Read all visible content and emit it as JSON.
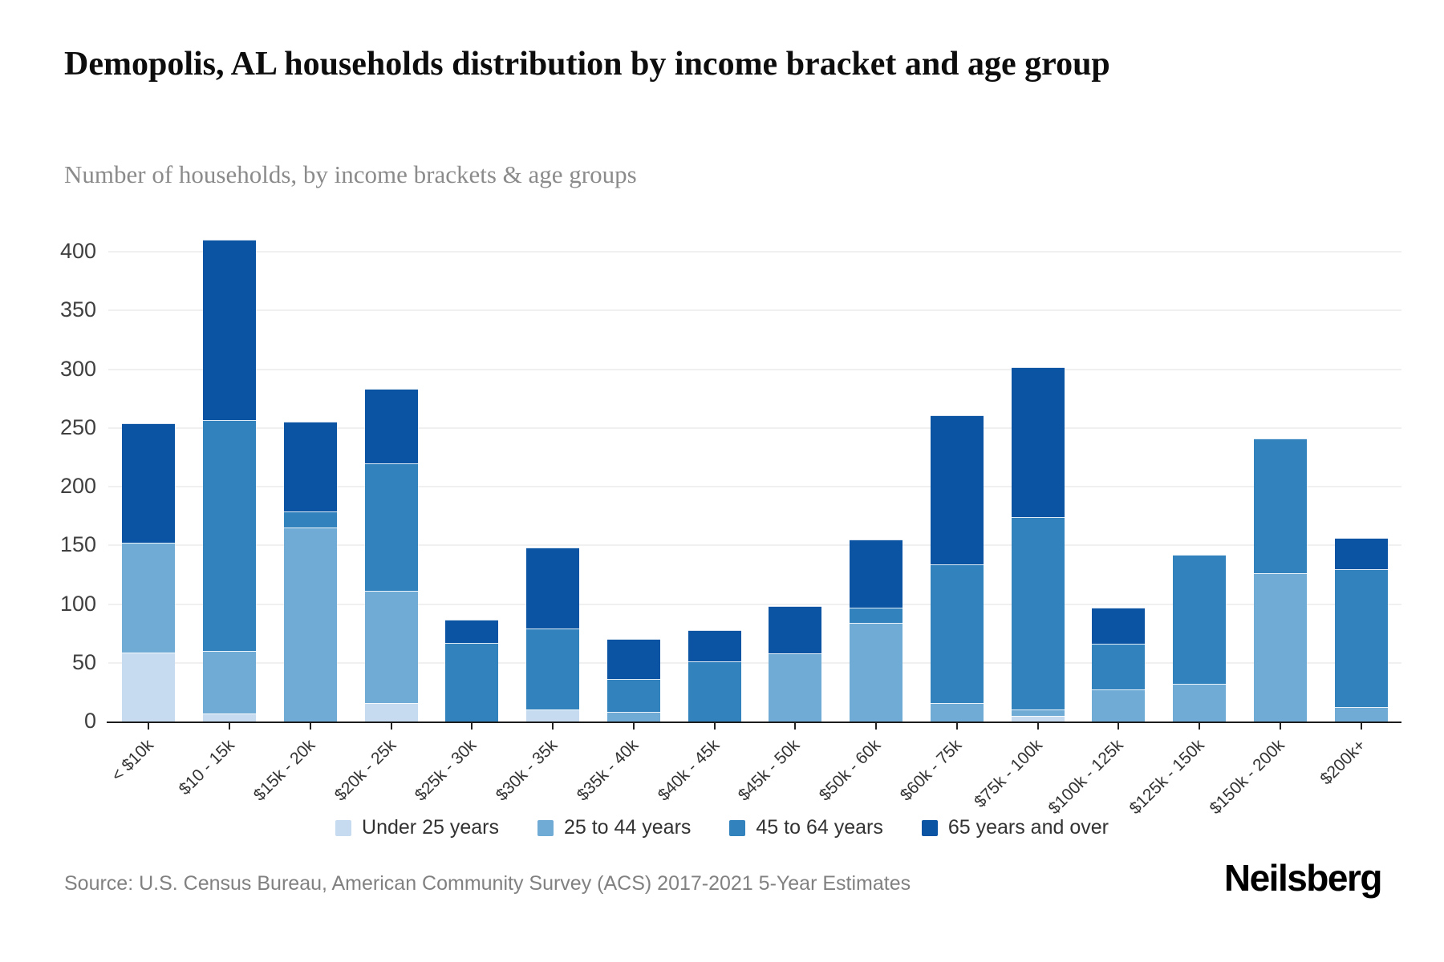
{
  "header": {
    "title": "Demopolis, AL households distribution by income bracket and age group",
    "subtitle": "Number of households, by income brackets & age groups"
  },
  "footer": {
    "source": "Source: U.S. Census Bureau, American Community Survey (ACS) 2017-2021 5-Year Estimates",
    "logo": "Neilsberg"
  },
  "chart_data": {
    "type": "bar",
    "stacked": true,
    "title": "Demopolis, AL households distribution by income bracket and age group",
    "subtitle": "Number of households, by income brackets & age groups",
    "xlabel": "",
    "ylabel": "",
    "ylim": [
      0,
      400
    ],
    "ytick_step": 50,
    "yticks": [
      0,
      50,
      100,
      150,
      200,
      250,
      300,
      350,
      400
    ],
    "grid": true,
    "legend_position": "bottom",
    "categories": [
      "< $10k",
      "$10 - 15k",
      "$15k - 20k",
      "$20k - 25k",
      "$25k - 30k",
      "$30k - 35k",
      "$35k - 40k",
      "$40k - 45k",
      "$45k - 50k",
      "$50k - 60k",
      "$60k - 75k",
      "$75k - 100k",
      "$100k - 125k",
      "$125k - 150k",
      "$150k - 200k",
      "$200k+"
    ],
    "series": [
      {
        "name": "Under 25 years",
        "color": "#c6dbef",
        "values": [
          59,
          7,
          0,
          16,
          0,
          10,
          0,
          0,
          0,
          0,
          0,
          5,
          0,
          0,
          0,
          0
        ]
      },
      {
        "name": "25 to 44 years",
        "color": "#6fabd5",
        "values": [
          93,
          53,
          165,
          95,
          0,
          0,
          8,
          0,
          58,
          84,
          16,
          5,
          27,
          32,
          126,
          12
        ]
      },
      {
        "name": "45 to 64 years",
        "color": "#3182bd",
        "values": [
          0,
          197,
          14,
          109,
          67,
          69,
          28,
          51,
          0,
          13,
          118,
          164,
          39,
          110,
          115,
          118
        ]
      },
      {
        "name": "65 years and over",
        "color": "#0b54a4",
        "values": [
          102,
          153,
          76,
          63,
          20,
          69,
          34,
          27,
          40,
          58,
          127,
          128,
          31,
          0,
          0,
          26
        ]
      }
    ],
    "bar_totals": [
      254,
      410,
      255,
      283,
      87,
      148,
      70,
      78,
      98,
      155,
      261,
      302,
      97,
      142,
      241,
      156
    ]
  }
}
